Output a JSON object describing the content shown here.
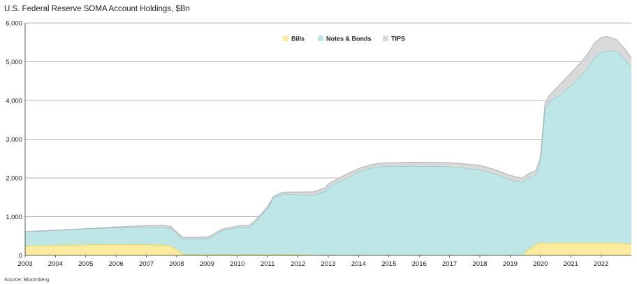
{
  "title": "U.S. Federal Reserve SOMA Account Holdings, $Bn",
  "source": "Source: Bloomberg",
  "chart_data": {
    "type": "area",
    "stacked": true,
    "title": "U.S. Federal Reserve SOMA Account Holdings, $Bn",
    "xlabel": "",
    "ylabel": "",
    "xlim": [
      2003,
      2023
    ],
    "ylim": [
      0,
      6000
    ],
    "y_ticks": [
      "0",
      "1,000",
      "2,000",
      "3,000",
      "4,000",
      "5,000",
      "6,000"
    ],
    "y_tick_values": [
      0,
      1000,
      2000,
      3000,
      4000,
      5000,
      6000
    ],
    "x_ticks": [
      "2003",
      "2004",
      "2005",
      "2006",
      "2007",
      "2008",
      "2009",
      "2010",
      "2011",
      "2012",
      "2013",
      "2014",
      "2015",
      "2016",
      "2017",
      "2018",
      "2019",
      "2020",
      "2021",
      "2022"
    ],
    "grid": true,
    "legend_position": "top-center",
    "x": [
      2003.0,
      2004.0,
      2005.0,
      2006.0,
      2007.0,
      2007.5,
      2007.8,
      2007.95,
      2008.2,
      2008.5,
      2009.0,
      2009.2,
      2009.5,
      2010.0,
      2010.4,
      2010.6,
      2011.0,
      2011.2,
      2011.5,
      2012.0,
      2012.5,
      2012.9,
      2013.0,
      2013.5,
      2014.0,
      2014.4,
      2014.7,
      2015.0,
      2016.0,
      2017.0,
      2018.0,
      2018.5,
      2019.0,
      2019.4,
      2019.6,
      2019.85,
      2020.0,
      2020.15,
      2020.3,
      2020.6,
      2021.0,
      2021.5,
      2021.8,
      2022.0,
      2022.2,
      2022.5,
      2022.8,
      2023.0
    ],
    "series": [
      {
        "name": "Bills",
        "color": "#fbeb9e",
        "values": [
          240,
          255,
          275,
          285,
          280,
          270,
          240,
          180,
          30,
          20,
          20,
          20,
          20,
          20,
          20,
          20,
          20,
          20,
          20,
          18,
          10,
          5,
          5,
          5,
          5,
          5,
          5,
          5,
          5,
          5,
          5,
          5,
          5,
          5,
          150,
          280,
          325,
          325,
          325,
          325,
          325,
          325,
          325,
          325,
          325,
          325,
          305,
          290
        ]
      },
      {
        "name": "Notes & Bonds",
        "color": "#bfe6e6",
        "values": [
          370,
          390,
          410,
          430,
          450,
          460,
          460,
          420,
          400,
          400,
          410,
          480,
          620,
          700,
          720,
          850,
          1200,
          1470,
          1570,
          1550,
          1540,
          1650,
          1750,
          1950,
          2150,
          2250,
          2290,
          2300,
          2300,
          2290,
          2210,
          2100,
          1950,
          1880,
          1850,
          1800,
          2100,
          3450,
          3650,
          3800,
          4050,
          4450,
          4800,
          4920,
          4960,
          4950,
          4750,
          4560
        ]
      },
      {
        "name": "TIPS",
        "color": "#d9d9d9",
        "values": [
          5,
          5,
          5,
          20,
          40,
          50,
          50,
          40,
          40,
          40,
          40,
          40,
          40,
          40,
          40,
          40,
          40,
          40,
          40,
          70,
          90,
          90,
          90,
          100,
          90,
          85,
          85,
          85,
          100,
          100,
          110,
          110,
          110,
          110,
          110,
          110,
          120,
          140,
          160,
          250,
          330,
          360,
          370,
          380,
          370,
          300,
          260,
          240
        ]
      }
    ]
  }
}
